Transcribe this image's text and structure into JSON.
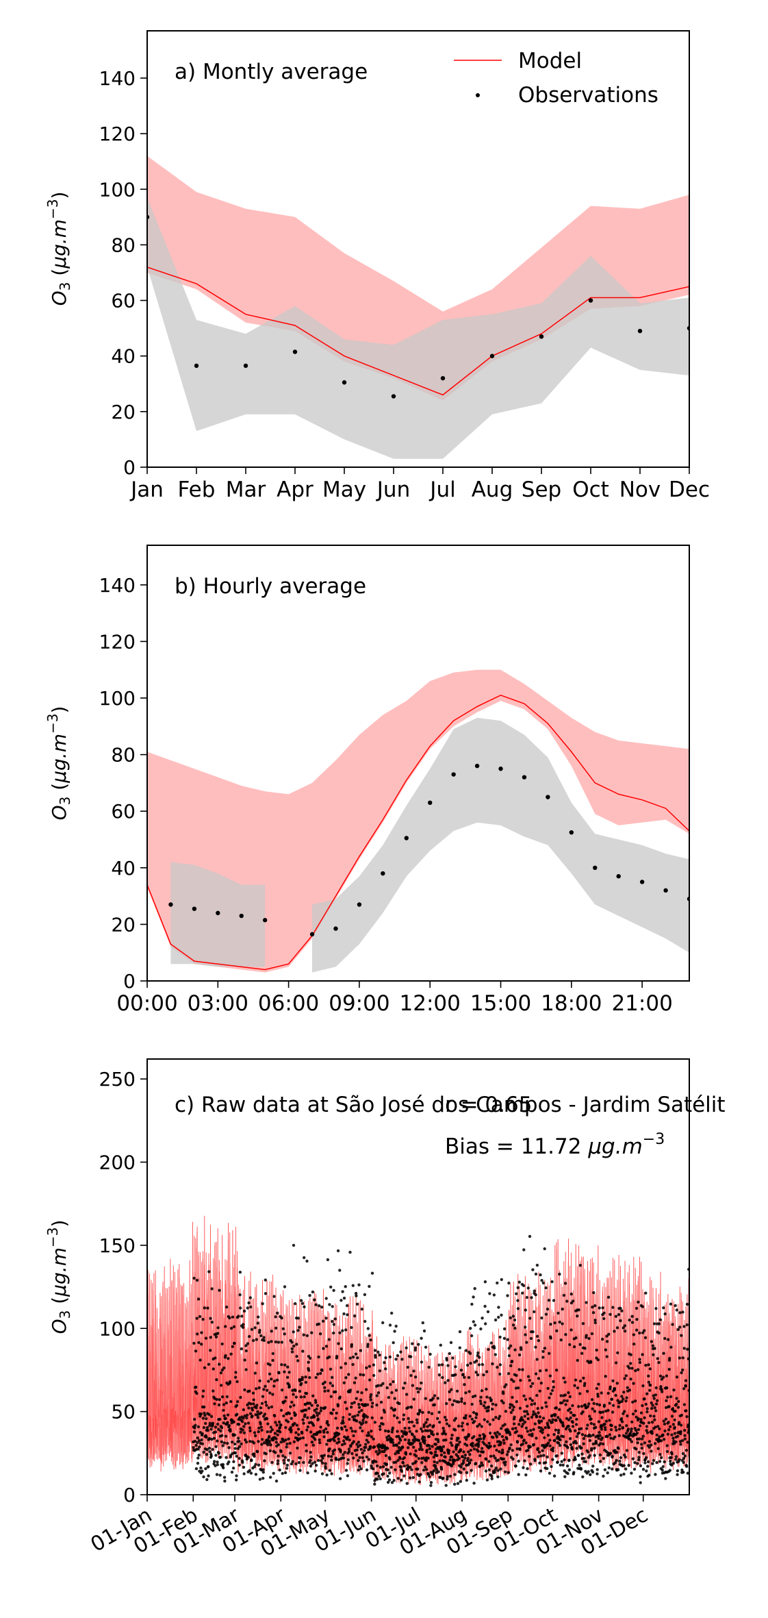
{
  "chart_data": [
    {
      "type": "line",
      "panel_label": "a) Montly average",
      "ylabel": "O₃ (μg.m⁻³)",
      "ylim": [
        0,
        157
      ],
      "yticks": [
        0,
        20,
        40,
        60,
        80,
        100,
        120,
        140
      ],
      "xlim": [
        0,
        11
      ],
      "categories": [
        "Jan",
        "Feb",
        "Mar",
        "Apr",
        "May",
        "Jun",
        "Jul",
        "Aug",
        "Sep",
        "Oct",
        "Nov",
        "Dec"
      ],
      "legend": {
        "model": "Model",
        "observations": "Observations",
        "placement": "top-right"
      },
      "model": {
        "values": [
          72,
          66,
          55,
          51,
          40,
          33,
          26,
          40,
          48,
          61,
          61,
          65
        ],
        "lower": [
          70,
          64,
          52,
          49,
          38,
          32,
          24,
          38,
          46,
          57,
          58,
          62
        ],
        "upper": [
          112,
          99,
          93,
          90,
          77,
          67,
          56,
          64,
          79,
          94,
          93,
          98
        ],
        "color": "#ff0000",
        "band_color": "#ffb3b3"
      },
      "observations": {
        "x": [
          0,
          1,
          2,
          3,
          4,
          5,
          6,
          7,
          8,
          9,
          10,
          11
        ],
        "values": [
          90,
          36.5,
          36.5,
          41.5,
          30.5,
          25.5,
          32,
          40,
          47,
          60,
          49,
          50
        ],
        "lower": [
          72,
          13,
          19,
          19,
          10,
          3,
          3,
          19,
          23,
          43,
          35,
          33
        ],
        "upper": [
          97,
          53,
          48,
          58,
          46,
          44,
          53,
          55,
          59,
          76,
          59,
          61
        ],
        "color": "#000000",
        "band_color": "#c8c8c8"
      }
    },
    {
      "type": "line",
      "panel_label": "b) Hourly average",
      "ylabel": "O₃ (μg.m⁻³)",
      "ylim": [
        0,
        154
      ],
      "yticks": [
        0,
        20,
        40,
        60,
        80,
        100,
        120,
        140
      ],
      "xlim": [
        0,
        23
      ],
      "xtick_positions": [
        0,
        3,
        6,
        9,
        12,
        15,
        18,
        21
      ],
      "xtick_labels": [
        "00:00",
        "03:00",
        "06:00",
        "09:00",
        "12:00",
        "15:00",
        "18:00",
        "21:00"
      ],
      "model": {
        "x": [
          0,
          1,
          2,
          3,
          4,
          5,
          6,
          7,
          8,
          9,
          10,
          11,
          12,
          13,
          14,
          15,
          16,
          17,
          18,
          19,
          20,
          21,
          22,
          23
        ],
        "values": [
          34,
          13,
          7,
          6,
          5,
          4,
          6,
          16,
          30,
          44,
          57,
          71,
          83,
          92,
          97,
          101,
          98,
          91,
          81,
          70,
          66,
          64,
          61,
          53
        ],
        "lower": [
          33,
          12,
          6,
          5,
          4,
          3,
          5,
          15,
          29,
          43,
          56,
          70,
          82,
          90,
          95,
          99,
          96,
          89,
          76,
          59,
          55,
          56,
          57,
          52
        ],
        "upper": [
          81,
          78,
          75,
          72,
          69,
          67,
          66,
          70,
          78,
          87,
          94,
          99,
          106,
          109,
          110,
          110,
          105,
          99,
          93,
          88,
          85,
          84,
          83,
          82
        ],
        "color": "#ff0000",
        "band_color": "#ffb3b3"
      },
      "observations": {
        "x": [
          1,
          2,
          3,
          4,
          5,
          7,
          8,
          9,
          10,
          11,
          12,
          13,
          14,
          15,
          16,
          17,
          18,
          19,
          20,
          21,
          22,
          23
        ],
        "values": [
          27,
          25.5,
          24,
          23,
          21.5,
          16.5,
          18.5,
          27,
          38,
          50.5,
          63,
          73,
          76,
          75,
          72,
          65,
          52.5,
          40,
          37,
          35,
          32,
          29
        ],
        "color": "#000000",
        "band_color": "#c8c8c8",
        "band_segments": [
          {
            "x": [
              1,
              2,
              3,
              4,
              5
            ],
            "lower": [
              6,
              6,
              5,
              5,
              5
            ],
            "upper": [
              42,
              41,
              38,
              34,
              34
            ]
          },
          {
            "x": [
              7,
              8,
              9,
              10,
              11,
              12,
              13,
              14,
              15,
              16,
              17,
              18,
              19,
              20,
              21,
              22,
              23
            ],
            "lower": [
              3,
              5,
              13,
              24,
              37,
              46,
              53,
              56,
              55,
              51,
              48,
              38,
              27,
              23,
              19,
              15,
              10
            ],
            "upper": [
              27,
              29,
              37,
              48,
              62,
              75,
              89,
              93,
              92,
              87,
              79,
              63,
              52,
              50,
              48,
              45,
              43
            ]
          }
        ]
      }
    },
    {
      "type": "scatter",
      "panel_label": "c) Raw data at São José dos Campos - Jardim Satélit",
      "stats": {
        "r": "r = 0.65",
        "bias": "Bias = 11.72 μg.m⁻³"
      },
      "ylabel": "O₃ (μg.m⁻³)",
      "ylim": [
        0,
        262
      ],
      "yticks": [
        0,
        50,
        100,
        150,
        200,
        250
      ],
      "xlim_days": [
        0,
        365
      ],
      "xtick_days": [
        0,
        31,
        59,
        90,
        120,
        151,
        181,
        212,
        243,
        273,
        304,
        334
      ],
      "xtick_labels": [
        "01-Jan",
        "01-Feb",
        "01-Mar",
        "01-Apr",
        "01-May",
        "01-Jun",
        "01-Jul",
        "01-Aug",
        "01-Sep",
        "01-Oct",
        "01-Nov",
        "01-Dec"
      ],
      "model_color": "#ff2020",
      "observation_color": "#000000",
      "observation_start_day": 31,
      "monthly_model_peak": [
        150,
        175,
        140,
        130,
        125,
        100,
        95,
        110,
        140,
        160,
        150,
        140
      ],
      "monthly_obs_peak": [
        0,
        135,
        145,
        158,
        150,
        115,
        105,
        135,
        158,
        140,
        140,
        140
      ]
    }
  ]
}
